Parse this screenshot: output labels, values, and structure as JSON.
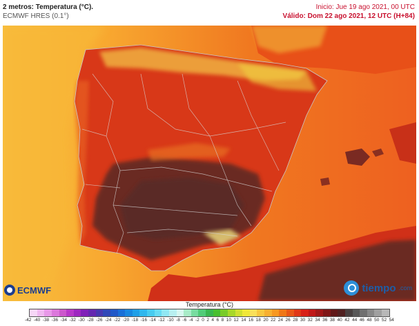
{
  "header": {
    "title": "2 metros: Temperatura (°C).",
    "model": "ECMWF HRES (0.1°)",
    "init": "Inicio: Jue 19 ago 2021, 00 UTC",
    "valid": "Válido: Dom 22 ago 2021, 12 UTC (H+84)"
  },
  "logos": {
    "ecmwf": "ECMWF",
    "tiempo": "tiempo",
    "tiempo_domain": ".com"
  },
  "legend": {
    "title": "Temperatura (°C)",
    "ticks": [
      "-42",
      "-40",
      "-38",
      "-36",
      "-34",
      "-32",
      "-30",
      "-28",
      "-26",
      "-24",
      "-22",
      "-20",
      "-18",
      "-16",
      "-14",
      "-12",
      "-10",
      "-8",
      "-6",
      "-4",
      "-2",
      "0",
      "2",
      "4",
      "6",
      "8",
      "10",
      "12",
      "14",
      "16",
      "18",
      "20",
      "22",
      "24",
      "26",
      "28",
      "30",
      "32",
      "34",
      "36",
      "38",
      "40",
      "42",
      "44",
      "46",
      "48",
      "50",
      "52",
      "54"
    ],
    "colors": [
      "#f7d7f7",
      "#f0b8f0",
      "#e898e8",
      "#dc78dc",
      "#cc58cc",
      "#b838c8",
      "#9e28c0",
      "#8020b8",
      "#6428b0",
      "#4838b0",
      "#3048b8",
      "#2058c8",
      "#1a70d8",
      "#1a88e0",
      "#20a0e8",
      "#30b8ee",
      "#48ccf0",
      "#68dcf4",
      "#90e8f4",
      "#b8f0f0",
      "#d8f8f0",
      "#a8ecc8",
      "#78dca0",
      "#50cc78",
      "#38b850",
      "#48c030",
      "#78cc28",
      "#a8d828",
      "#d0e030",
      "#f0e838",
      "#fae05a",
      "#f8c840",
      "#f8b030",
      "#f89820",
      "#f07818",
      "#e85818",
      "#e03818",
      "#d82018",
      "#c01818",
      "#a01818",
      "#801818",
      "#601818",
      "#502020",
      "#484040",
      "#585858",
      "#707070",
      "#888888",
      "#a0a0a0",
      "#b8b8b8"
    ]
  },
  "map_labels": []
}
